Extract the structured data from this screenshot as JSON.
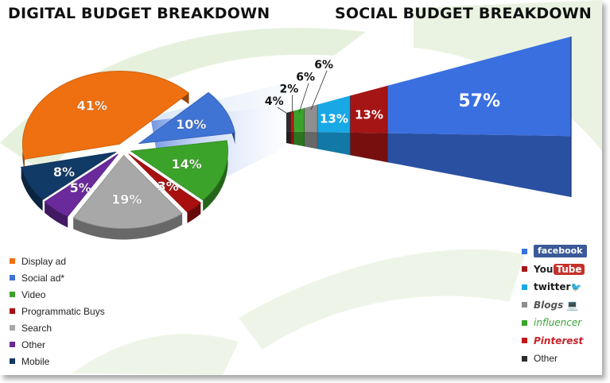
{
  "titles": {
    "digital": "DIGITAL BUDGET BREAKDOWN",
    "social": "SOCIAL BUDGET BREAKDOWN"
  },
  "chart_data": [
    {
      "type": "pie",
      "title": "DIGITAL BUDGET BREAKDOWN",
      "categories": [
        "Display ad",
        "Social ad*",
        "Video",
        "Programmatic Buys",
        "Search",
        "Other",
        "Mobile"
      ],
      "values": [
        41,
        10,
        14,
        3,
        19,
        5,
        8
      ],
      "labels": [
        "41%",
        "10%",
        "14%",
        "3%",
        "19%",
        "5%",
        "8%"
      ],
      "colors": [
        "#ee7010",
        "#3f73d4",
        "#3ca32a",
        "#a81010",
        "#a8a8a8",
        "#6a2a9c",
        "#123a66"
      ],
      "legend_position": "bottom-left"
    },
    {
      "type": "bar",
      "title": "SOCIAL BUDGET BREAKDOWN",
      "categories": [
        "facebook",
        "YouTube",
        "twitter",
        "Blogs",
        "influencer",
        "Pinterest",
        "Other"
      ],
      "values": [
        57,
        13,
        13,
        6,
        6,
        2,
        4
      ],
      "labels": [
        "57%",
        "13%",
        "13%",
        "6%",
        "6%",
        "2%",
        "4%"
      ],
      "colors": [
        "#3a6fe0",
        "#a51515",
        "#19a8e6",
        "#8f8f8f",
        "#3ca32a",
        "#c41616",
        "#2d2d2d"
      ],
      "legend_position": "bottom-right"
    }
  ],
  "digital_legend": [
    {
      "label": "Display ad",
      "color": "#ee7010"
    },
    {
      "label": "Social ad*",
      "color": "#3f73d4"
    },
    {
      "label": "Video",
      "color": "#3ca32a"
    },
    {
      "label": "Programmatic Buys",
      "color": "#a81010"
    },
    {
      "label": "Search",
      "color": "#a8a8a8"
    },
    {
      "label": "Other",
      "color": "#6a2a9c"
    },
    {
      "label": "Mobile",
      "color": "#123a66"
    }
  ],
  "social_legend": {
    "facebook": {
      "text": "facebook",
      "color": "#3a6fe0"
    },
    "youtube": {
      "you": "You",
      "tube": "Tube",
      "color": "#a51515"
    },
    "twitter": {
      "text": "twitter",
      "bird": "🐦",
      "color": "#19a8e6"
    },
    "blogs": {
      "text": "Blogs",
      "icon": "💻",
      "color": "#8f8f8f"
    },
    "influencer": {
      "text": "influencer",
      "color": "#3ca32a"
    },
    "pinterest": {
      "text": "Pinterest",
      "color": "#c41616"
    },
    "other": {
      "text": "Other",
      "color": "#2d2d2d"
    }
  }
}
